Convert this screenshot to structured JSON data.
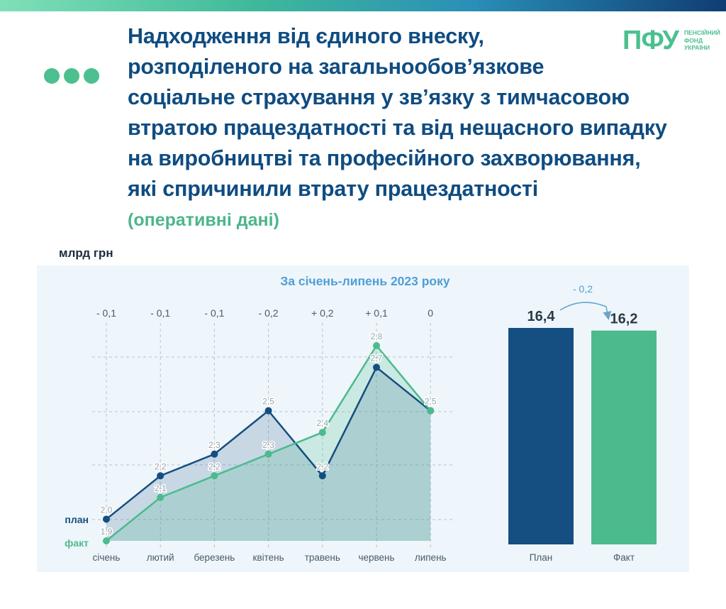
{
  "header": {
    "title_lines": [
      "Надходження від єдиного внеску,",
      "розподіленого на загальнообов’язкове",
      "соціальне страхування у зв’язку з тимчасовою",
      "втратою працездатності та від нещасного випадку",
      "на виробництві та професійного захворювання,",
      "які спричинили втрату працездатності"
    ],
    "subtitle": "(оперативні дані)"
  },
  "logo": {
    "mark": "ПФУ",
    "text_lines": [
      "ПЕНСІЙНИЙ",
      "ФОНД",
      "УКРАЇНИ"
    ]
  },
  "colors": {
    "plan": "#154e80",
    "fact": "#4cba8d",
    "title": "#0f4c81",
    "accent": "#4cc08f"
  },
  "chart_data": [
    {
      "type": "line",
      "title": "За січень-липень 2023 року",
      "ylabel": "млрд грн",
      "categories": [
        "січень",
        "лютий",
        "березень",
        "квітень",
        "травень",
        "червень",
        "липень"
      ],
      "series": [
        {
          "name": "план",
          "values": [
            2.0,
            2.2,
            2.3,
            2.5,
            2.2,
            2.7,
            2.5
          ],
          "labels": [
            "2,0",
            "2,2",
            "2,3",
            "2,5",
            "2,2",
            "2,7",
            "2,5"
          ]
        },
        {
          "name": "факт",
          "values": [
            1.9,
            2.1,
            2.2,
            2.3,
            2.4,
            2.8,
            2.5
          ],
          "labels": [
            "1,9",
            "2,1",
            "2,2",
            "2,3",
            "2,4",
            "2,8",
            "2,5"
          ]
        }
      ],
      "differences": [
        "- 0,1",
        "- 0,1",
        "- 0,1",
        "- 0,2",
        "+ 0,2",
        "+ 0,1",
        "0"
      ],
      "ylim": [
        1.9,
        2.8
      ],
      "grid": true
    },
    {
      "type": "bar",
      "categories": [
        "План",
        "Факт"
      ],
      "values": [
        16.4,
        16.2
      ],
      "labels": [
        "16,4",
        "16,2"
      ],
      "difference": "- 0,2",
      "ylim": [
        0,
        16.4
      ]
    }
  ]
}
